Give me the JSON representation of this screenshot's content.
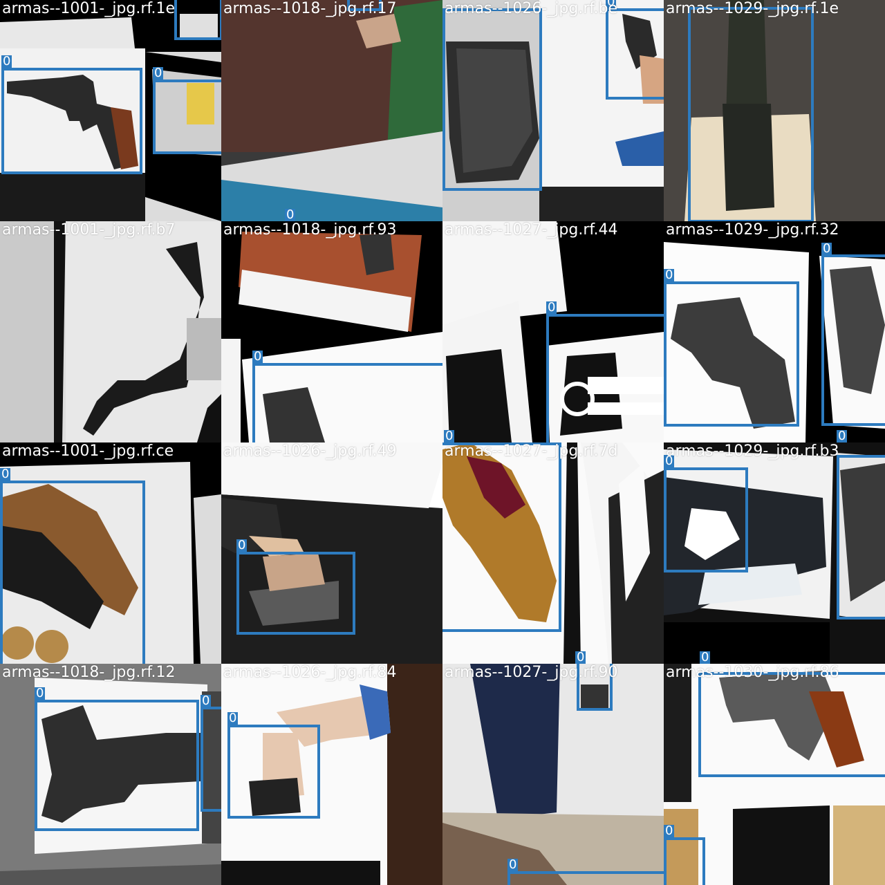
{
  "accent_color": "#2d7bbf",
  "tiles": [
    {
      "title": "armas--1001-_jpg.rf.1e",
      "labels": [
        "0",
        "0"
      ]
    },
    {
      "title": "armas--1018-_jpg.rf.17",
      "labels": [
        "0"
      ]
    },
    {
      "title": "armas--1026-_jpg.rf.be",
      "labels": [
        "0"
      ]
    },
    {
      "title": "armas--1029-_jpg.rf.1e",
      "labels": []
    },
    {
      "title": "armas--1001-_jpg.rf.b7",
      "labels": []
    },
    {
      "title": "armas--1018-_jpg.rf.93",
      "labels": [
        "0"
      ]
    },
    {
      "title": "armas--1027-_jpg.rf.44",
      "labels": [
        "0",
        "0"
      ]
    },
    {
      "title": "armas--1029-_jpg.rf.32",
      "labels": [
        "0",
        "0",
        "0"
      ]
    },
    {
      "title": "armas--1001-_jpg.rf.ce",
      "labels": [
        "0"
      ]
    },
    {
      "title": "armas--1026-_jpg.rf.49",
      "labels": [
        "0"
      ]
    },
    {
      "title": "armas--1027-_jpg.rf.7d",
      "labels": [
        "0"
      ]
    },
    {
      "title": "armas--1029-_jpg.rf.b3",
      "labels": [
        "0",
        "0"
      ]
    },
    {
      "title": "armas--1018-_jpg.rf.12",
      "labels": [
        "0",
        "0"
      ]
    },
    {
      "title": "armas--1026-_jpg.rf.84",
      "labels": [
        "0"
      ]
    },
    {
      "title": "armas--1027-_jpg.rf.90",
      "labels": [
        "0"
      ]
    },
    {
      "title": "armas--1030-_jpg.rf.86",
      "labels": [
        "0"
      ]
    }
  ]
}
